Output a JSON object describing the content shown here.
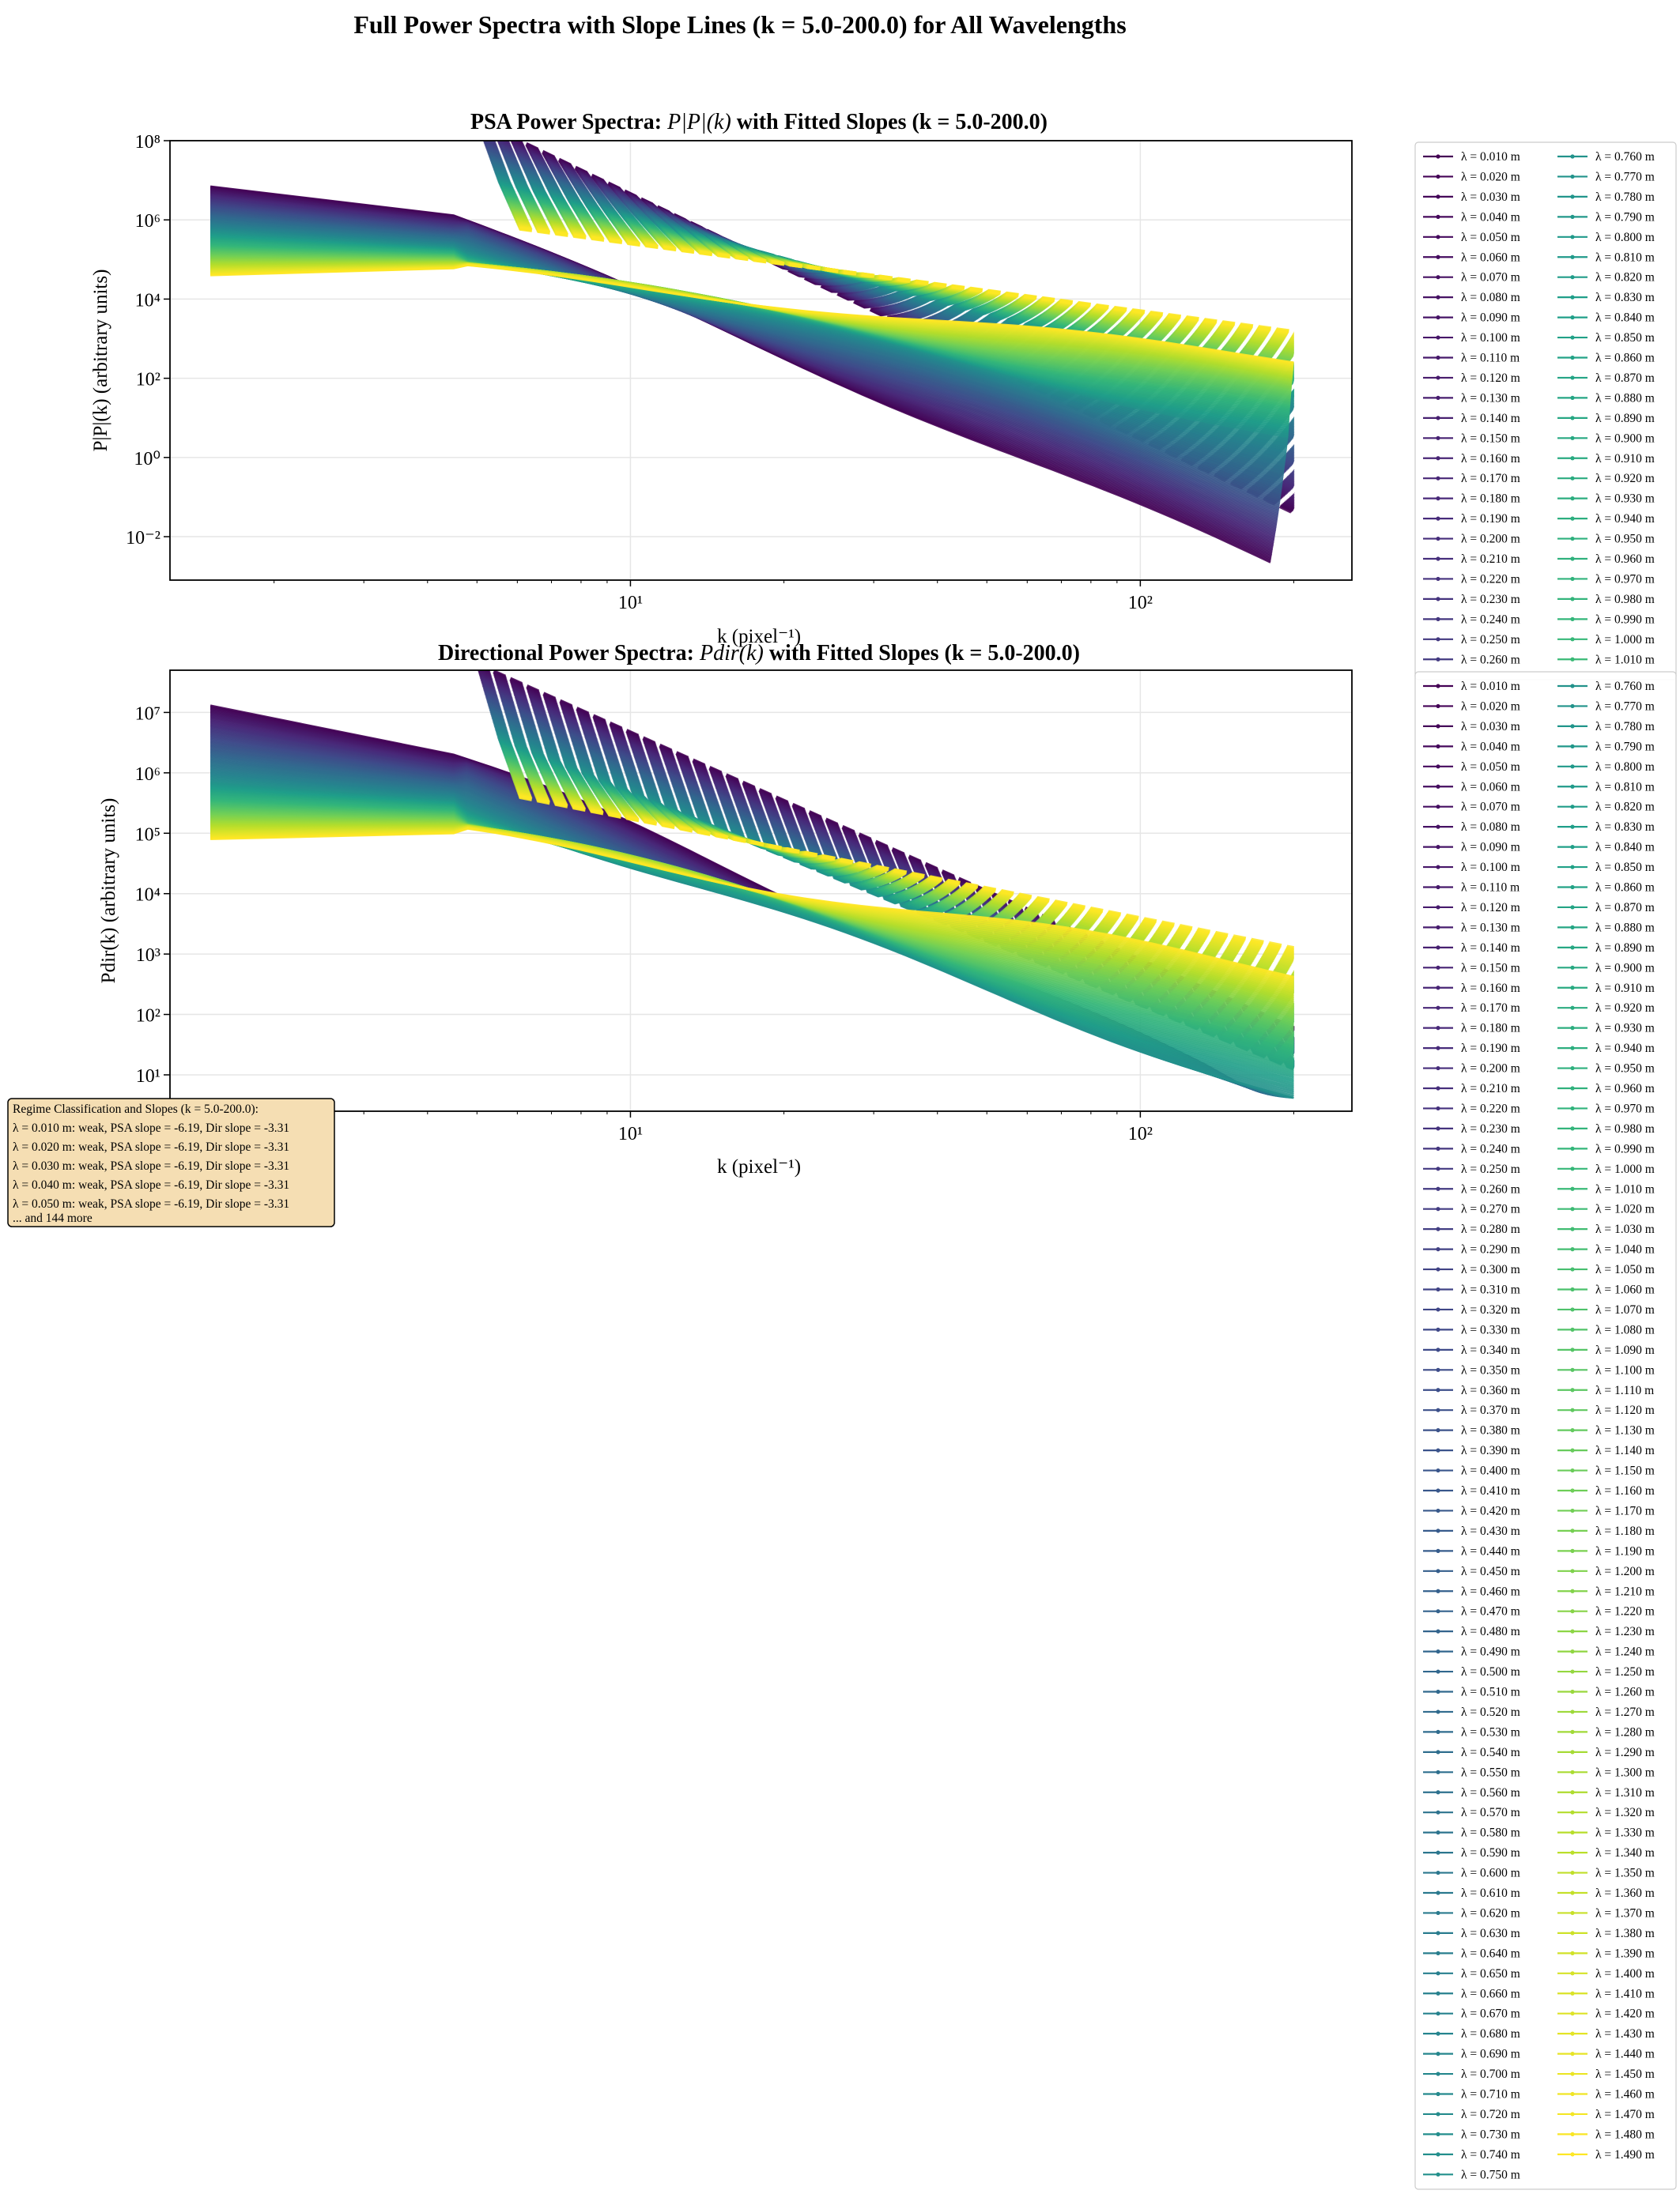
{
  "figure": {
    "title": "Full Power Spectra with Slope Lines (k = 5.0-200.0) for All Wavelengths"
  },
  "chart_data": [
    {
      "type": "line",
      "title_prefix": "PSA Power Spectra: ",
      "title_math": "P|P|(k)",
      "title_suffix": " with Fitted Slopes (k = 5.0-200.0)",
      "xlabel": "k (pixel⁻¹)",
      "ylabel": "P|P|(k) (arbitrary units)",
      "xscale": "log",
      "yscale": "log",
      "xlim": [
        1.25,
        260
      ],
      "ylim": [
        0.0008,
        100000000
      ],
      "xticks": [
        {
          "value": 10,
          "label": "10¹"
        },
        {
          "value": 100,
          "label": "10²"
        }
      ],
      "yticks": [
        {
          "value": 0.01,
          "label": "10⁻²"
        },
        {
          "value": 1,
          "label": "10⁰"
        },
        {
          "value": 100,
          "label": "10²"
        },
        {
          "value": 10000,
          "label": "10⁴"
        },
        {
          "value": 1000000,
          "label": "10⁶"
        },
        {
          "value": 100000000,
          "label": "10⁸"
        }
      ],
      "grid": true,
      "legend_location": "outside-right",
      "colormap": "viridis",
      "wavelength_range_m": [
        0.01,
        1.49
      ],
      "wavelength_step_m": 0.01,
      "series_summary": [
        {
          "name": "λ = 0.010 m",
          "start": [
            1.5,
            7000000
          ],
          "knee": [
            4.5,
            1300000
          ],
          "end": [
            180,
            0.002
          ]
        },
        {
          "name": "λ = 0.750 m",
          "start": [
            1.5,
            500000
          ],
          "knee": [
            4.5,
            200000
          ],
          "end": [
            195,
            3
          ]
        },
        {
          "name": "λ = 1.490 m",
          "start": [
            1.5,
            40000
          ],
          "knee": [
            4.5,
            60000
          ],
          "end": [
            200,
            300
          ]
        }
      ],
      "slope_line": {
        "k_range": [
          5,
          200
        ],
        "psa_slope": -6.19
      }
    },
    {
      "type": "line",
      "title_prefix": "Directional Power Spectra: ",
      "title_math": "Pdir(k)",
      "title_suffix": " with Fitted Slopes (k = 5.0-200.0)",
      "xlabel": "k (pixel⁻¹)",
      "ylabel": "Pdir(k) (arbitrary units)",
      "xscale": "log",
      "yscale": "log",
      "xlim": [
        1.25,
        260
      ],
      "ylim": [
        2.5,
        50000000
      ],
      "xticks": [
        {
          "value": 10,
          "label": "10¹"
        },
        {
          "value": 100,
          "label": "10²"
        }
      ],
      "yticks": [
        {
          "value": 10,
          "label": "10¹"
        },
        {
          "value": 100,
          "label": "10²"
        },
        {
          "value": 1000,
          "label": "10³"
        },
        {
          "value": 10000,
          "label": "10⁴"
        },
        {
          "value": 100000,
          "label": "10⁵"
        },
        {
          "value": 1000000,
          "label": "10⁶"
        },
        {
          "value": 10000000,
          "label": "10⁷"
        }
      ],
      "grid": true,
      "legend_location": "outside-right",
      "colormap": "viridis",
      "wavelength_range_m": [
        0.01,
        1.49
      ],
      "wavelength_step_m": 0.01,
      "series_summary": [
        {
          "name": "λ = 0.010 m",
          "start": [
            1.5,
            13000000
          ],
          "knee": [
            4.5,
            2000000
          ],
          "end": [
            130,
            15
          ]
        },
        {
          "name": "λ = 0.750 m",
          "start": [
            1.5,
            700000
          ],
          "knee": [
            4.5,
            350000
          ],
          "end": [
            200,
            4
          ]
        },
        {
          "name": "λ = 1.490 m",
          "start": [
            1.5,
            80000
          ],
          "knee": [
            4.5,
            100000
          ],
          "end": [
            200,
            500
          ]
        }
      ],
      "slope_line": {
        "k_range": [
          5,
          200
        ],
        "dir_slope": -3.31
      }
    }
  ],
  "annotation": {
    "title": "Regime Classification and Slopes (k = 5.0-200.0):",
    "lines": [
      "λ = 0.010 m: weak, PSA slope = -6.19, Dir slope = -3.31",
      "λ = 0.020 m: weak, PSA slope = -6.19, Dir slope = -3.31",
      "λ = 0.030 m: weak, PSA slope = -6.19, Dir slope = -3.31",
      "λ = 0.040 m: weak, PSA slope = -6.19, Dir slope = -3.31",
      "λ = 0.050 m: weak, PSA slope = -6.19, Dir slope = -3.31"
    ],
    "more": "... and 144 more"
  },
  "legend": {
    "psa_partial": {
      "col1_last": 0.26,
      "col2_first": 0.76,
      "col2_last": 1.01
    },
    "dir_full": {
      "col1": [
        0.01,
        0.75
      ],
      "col2": [
        0.76,
        1.49
      ]
    }
  },
  "colors": {
    "axis": "#000000",
    "grid": "#e6e6e6",
    "annotation_bg": "#f5deb3"
  }
}
